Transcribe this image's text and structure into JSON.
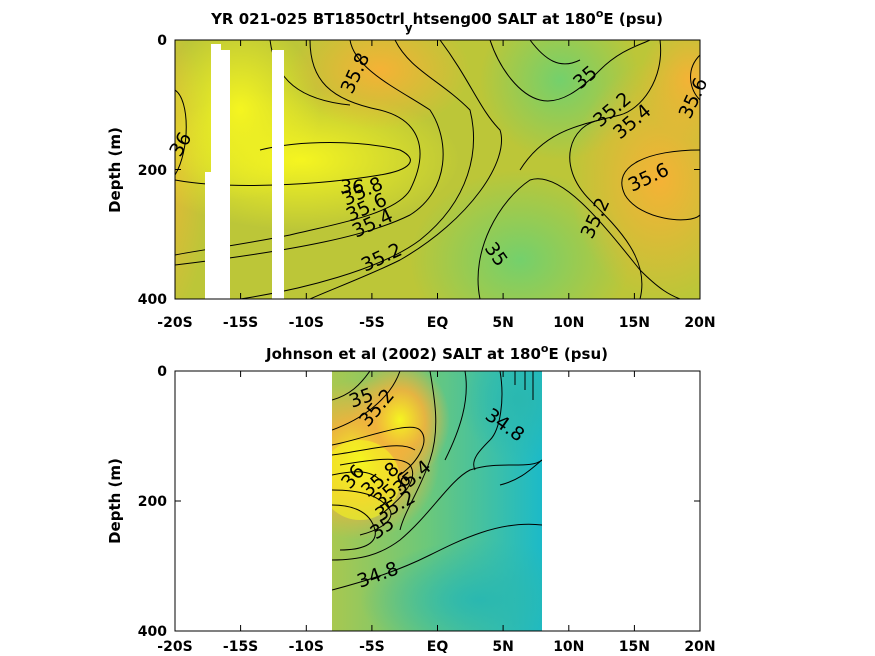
{
  "colors": {
    "high": "#f5f520",
    "mid": "#f2b23c",
    "low": "#74d06c",
    "lowest": "#1cbac8",
    "mask": "#ffffff"
  },
  "chart_data": [
    {
      "type": "heatmap",
      "title_parts": [
        "YR 021-025 BT1850ctrl",
        "y",
        "htseng00 SALT at 180",
        "o",
        "E (psu)"
      ],
      "ylabel": "Depth (m)",
      "xticks": [
        "-20S",
        "-15S",
        "-10S",
        "-5S",
        "EQ",
        "5N",
        "10N",
        "15N",
        "20N"
      ],
      "yticks": [
        "0",
        "200",
        "400"
      ],
      "xlim": [
        -20,
        20
      ],
      "ylim": [
        0,
        400
      ],
      "contour_labels": [
        "35.8",
        "35",
        "35.2",
        "35.4",
        "35.6",
        "36",
        "36",
        "35.8",
        "35.6",
        "35.4",
        "35.6",
        "35.2",
        "35.2",
        "35"
      ]
    },
    {
      "type": "heatmap",
      "title_parts": [
        "Johnson et al (2002) SALT at 180",
        "o",
        "E (psu)"
      ],
      "ylabel": "Depth (m)",
      "xticks": [
        "-20S",
        "-15S",
        "-10S",
        "-5S",
        "EQ",
        "5N",
        "10N",
        "15N",
        "20N"
      ],
      "yticks": [
        "0",
        "200",
        "400"
      ],
      "xlim": [
        -20,
        20
      ],
      "ylim": [
        0,
        400
      ],
      "data_extent_x": [
        -8,
        8
      ],
      "contour_labels": [
        "35",
        "35.2",
        "34.8",
        "36",
        "35.8",
        "35.6",
        "35.4",
        "35.2",
        "35",
        "34.8"
      ]
    }
  ]
}
